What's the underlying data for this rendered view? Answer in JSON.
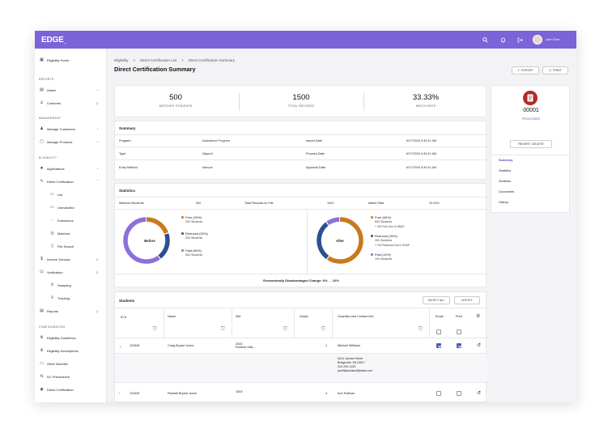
{
  "app": {
    "logo": "EDGE",
    "logo_suffix": "™",
    "user_name": "John Doe"
  },
  "sidebar": {
    "home": "Eligibility Home",
    "sections": [
      "REPORTS",
      "MANAGEMENT",
      "ELIGIBILITY",
      "CONFIGURATION"
    ],
    "reports": [
      {
        "label": "Admin"
      },
      {
        "label": "Customer",
        "count": "2"
      }
    ],
    "management": [
      {
        "label": "Manage Customers"
      },
      {
        "label": "Manage Products"
      }
    ],
    "applications": "Applications",
    "direct_certification": "Direct Certification",
    "dc_items": [
      "List",
      "Unmatched",
      "Extensions",
      "Matched",
      "File Search"
    ],
    "income_surveys": "Income Surveys",
    "income_count": "2",
    "verification": "Verification",
    "verification_count": "2",
    "verification_items": [
      "Sampling",
      "Tracking"
    ],
    "reports_item": "Reports",
    "reports_count": "2",
    "config_items": [
      "Eligibility Guidelines",
      "Eligibility Descriptions",
      "Other Benefits",
      "DC Precedence",
      "Direct Certification"
    ]
  },
  "breadcrumb": [
    "Eligibility",
    ">",
    "Direct Certification List",
    ">",
    "Direct Certification Summary"
  ],
  "page_title": "Direct Certification Summary",
  "actions": {
    "export": "EXPORT",
    "print": "PRINT"
  },
  "stats": [
    {
      "value": "500",
      "label": "MATCHED STUDENTS"
    },
    {
      "value": "1500",
      "label": "TOTAL RECORDS"
    },
    {
      "value": "33.33%",
      "label": "MATCH RATE"
    }
  ],
  "summary": {
    "title": "Summary",
    "rows": [
      {
        "k1": "Program",
        "v1": "Assistance Program",
        "k2": "Import Date",
        "v2": "6/27/2026 5:30:41 AM"
      },
      {
        "k1": "Type",
        "v1": "Migrant",
        "k2": "Process Date",
        "v2": "6/27/2026 5:30:41 AM"
      },
      {
        "k1": "Entry Method",
        "v1": "Manual",
        "k2": "Approval Date",
        "v2": "6/27/2026 5:30:41 AM"
      }
    ]
  },
  "statistics": {
    "title": "Statistics",
    "matched_label": "Matched Students",
    "matched_value": "500",
    "total_label": "Total Records on File",
    "total_value": "1500",
    "rate_label": "Match Rate",
    "rate_value": "33.33%",
    "before": {
      "label": "Before",
      "free": {
        "title": "Free (20%)",
        "sub": "200 Students",
        "fraction": 0.2
      },
      "reduced": {
        "title": "Reduced (20%)",
        "sub": "200 Students",
        "fraction": 0.2
      },
      "paid": {
        "title": "Paid (60%)",
        "sub": "600 Students",
        "fraction": 0.6
      }
    },
    "after": {
      "label": "After",
      "free": {
        "title": "Free (60%)",
        "sub": "600 Students",
        "note": "+ 400 Free Due to SNAP",
        "fraction": 0.6
      },
      "reduced": {
        "title": "Reduced (30%)",
        "sub": "300 Students",
        "note": "+ 100 Reduced Due to SNAP",
        "fraction": 0.3
      },
      "paid": {
        "title": "Paid (10%)",
        "sub": "100 Students",
        "fraction": 0.1
      }
    },
    "change": "Economically Disadvantaged Change: 6% → 22%",
    "colors": {
      "free": "#c97a1b",
      "reduced": "#2c4f8f",
      "paid": "#8c6fdc"
    }
  },
  "students": {
    "title": "Students",
    "notify_all": "NOTIFY ALL",
    "notify": "NOTIFY",
    "headers": [
      "ID ▾",
      "Name",
      "Site",
      "Grade",
      "Guardian and Contact Info",
      "Email",
      "Print"
    ],
    "rows": [
      {
        "id": "110346",
        "name": "Craig Bryant Junior",
        "site": "3343",
        "site2": "Roberts Hills...",
        "grade": "1",
        "guardian": "Mitchell Williams",
        "email": true,
        "print": true
      },
      {
        "id": "110425",
        "name": "Randall Bryant Junior",
        "site": "1003",
        "site2": "",
        "grade": "4",
        "guardian": "Ann Sullivan",
        "email": false,
        "print": false
      }
    ],
    "expanded": [
      "5414 Jacobs Street",
      "Bridgeville, PA 15017",
      "412-292-1133",
      "josef@assistud@data.com"
    ]
  },
  "record": {
    "number": "00001",
    "status": "PROCESSED",
    "revert": "REVERT / DELETE",
    "nav": [
      "Summary",
      "Statistics",
      "Students",
      "Documents",
      "History"
    ]
  }
}
